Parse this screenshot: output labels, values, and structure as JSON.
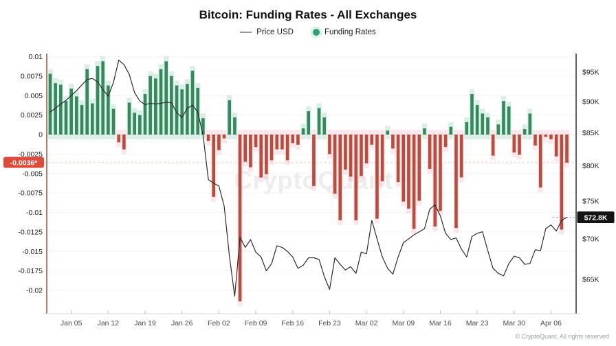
{
  "title": "Bitcoin: Funding Rates - All Exchanges",
  "legend": {
    "price_label": "Price USD",
    "funding_label": "Funding Rates"
  },
  "watermark": "CryptoQuant",
  "copyright": "© CryptoQuant. All rights reserved",
  "badges": {
    "funding_current": "-0.0036*",
    "price_current": "$72.8K"
  },
  "colors": {
    "bar_positive": "#35895e",
    "bar_positive_halo": "#36a474",
    "bar_negative": "#bc4b3b",
    "bar_negative_halo": "#ef6a8a",
    "price_line": "#2b2b2b",
    "left_axis_spine": "#b05538",
    "right_axis_spine": "#1f1f1f",
    "bottom_axis": "#d8d8d8",
    "grid": "#f4f4f4",
    "zero_line": "#e7e7e7",
    "funding_badge_bg": "#e04a3a",
    "price_badge_bg": "#141414",
    "funding_dash_line": "#e87a74"
  },
  "chart_data": {
    "type": "bar",
    "title": "Bitcoin: Funding Rates - All Exchanges",
    "x_axis": {
      "tick_labels": [
        "Jan 05",
        "Jan 12",
        "Jan 19",
        "Jan 26",
        "Feb 02",
        "Feb 09",
        "Feb 16",
        "Feb 23",
        "Mar 02",
        "Mar 09",
        "Mar 16",
        "Mar 23",
        "Mar 30",
        "Apr 06"
      ],
      "tick_indices": [
        4,
        11,
        18,
        25,
        32,
        39,
        46,
        53,
        60,
        67,
        74,
        81,
        88,
        95
      ]
    },
    "left_axis": {
      "title": "Funding Rates",
      "tick_values": [
        0.01,
        0.0075,
        0.005,
        0.0025,
        0,
        -0.0025,
        -0.005,
        -0.0075,
        -0.01,
        -0.0125,
        -0.015,
        -0.0175,
        -0.02
      ],
      "tick_labels": [
        "0.01",
        "0.0075",
        "0.005",
        "0.0025",
        "0",
        "-0.0025",
        "-0.005",
        "-0.0075",
        "-0.01",
        "-0.0125",
        "-0.015",
        "-0.0175",
        "-0.02"
      ],
      "range": [
        0.0104,
        -0.023
      ],
      "current_value": -0.0036
    },
    "right_axis": {
      "title": "Price USD",
      "scale": "log",
      "tick_values_k": [
        95,
        90,
        85,
        80,
        75,
        70,
        65
      ],
      "tick_labels": [
        "$95K",
        "$90K",
        "$85K",
        "$80K",
        "$75K",
        "$70K",
        "$65K"
      ],
      "current_value_k": 72.8
    },
    "series": [
      {
        "name": "Funding Rates",
        "type": "bar",
        "axis": "left",
        "values": [
          0.0078,
          0.0066,
          0.0064,
          0.0043,
          0.0059,
          0.0049,
          0.0038,
          0.0084,
          0.004,
          0.0088,
          0.0094,
          0.0063,
          0.0033,
          -0.001,
          -0.0019,
          0.0041,
          0.0028,
          0.0025,
          0.0052,
          0.0075,
          0.0072,
          0.0084,
          0.0094,
          0.0075,
          0.0063,
          0.0058,
          0.0065,
          0.0082,
          0.006,
          0.0021,
          -0.0008,
          -0.008,
          -0.002,
          -0.0005,
          0.0044,
          0.0022,
          -0.0214,
          -0.0035,
          -0.0042,
          -0.0016,
          -0.0055,
          -0.0051,
          -0.0033,
          -0.0019,
          -0.0019,
          -0.0033,
          -0.0011,
          -0.0013,
          0.0008,
          0.003,
          -0.0066,
          0.0034,
          0.0022,
          -0.0025,
          -0.0076,
          -0.011,
          -0.0045,
          -0.0054,
          -0.011,
          -0.0053,
          -0.0037,
          -0.0013,
          -0.0108,
          -0.006,
          0.0005,
          -0.0018,
          -0.0061,
          -0.0086,
          -0.0095,
          -0.0121,
          -0.0085,
          0.0008,
          -0.0044,
          -0.0118,
          -0.0098,
          -0.0016,
          0.001,
          -0.012,
          -0.0055,
          0.0016,
          0.0052,
          0.0038,
          0.0027,
          0.0022,
          -0.0027,
          0.0013,
          0.0043,
          0.0036,
          -0.0023,
          -0.0026,
          0.0007,
          0.0027,
          -0.0014,
          -0.0068,
          -0.0003,
          -0.0006,
          -0.0028,
          -0.0122,
          -0.0036
        ]
      },
      {
        "name": "Price USD",
        "type": "line",
        "axis": "right",
        "values_k": [
          88.3,
          88.9,
          89.6,
          90.2,
          91.0,
          91.8,
          92.8,
          93.7,
          93.9,
          93.3,
          92.0,
          90.9,
          93.2,
          97.1,
          96.3,
          94.6,
          91.5,
          90.1,
          89.5,
          89.7,
          89.6,
          89.7,
          89.9,
          89.8,
          88.2,
          87.4,
          88.9,
          89.4,
          88.3,
          84.6,
          78.0,
          77.5,
          77.1,
          74.3,
          67.8,
          63.0,
          70.2,
          68.9,
          69.9,
          68.3,
          67.7,
          66.0,
          66.9,
          69.1,
          68.9,
          68.4,
          67.7,
          66.3,
          66.7,
          67.6,
          67.6,
          67.4,
          65.3,
          63.8,
          67.6,
          66.8,
          66.1,
          66.5,
          65.7,
          68.3,
          68.1,
          72.4,
          70.0,
          67.7,
          66.3,
          65.6,
          67.7,
          69.5,
          70.0,
          70.5,
          70.9,
          71.3,
          73.9,
          74.5,
          73.0,
          70.7,
          69.9,
          70.1,
          68.7,
          67.7,
          70.3,
          70.7,
          70.9,
          68.5,
          66.3,
          65.7,
          65.4,
          66.9,
          67.8,
          67.6,
          66.8,
          66.9,
          68.6,
          68.5,
          71.3,
          71.8,
          71.0,
          72.4,
          72.8
        ]
      }
    ]
  }
}
